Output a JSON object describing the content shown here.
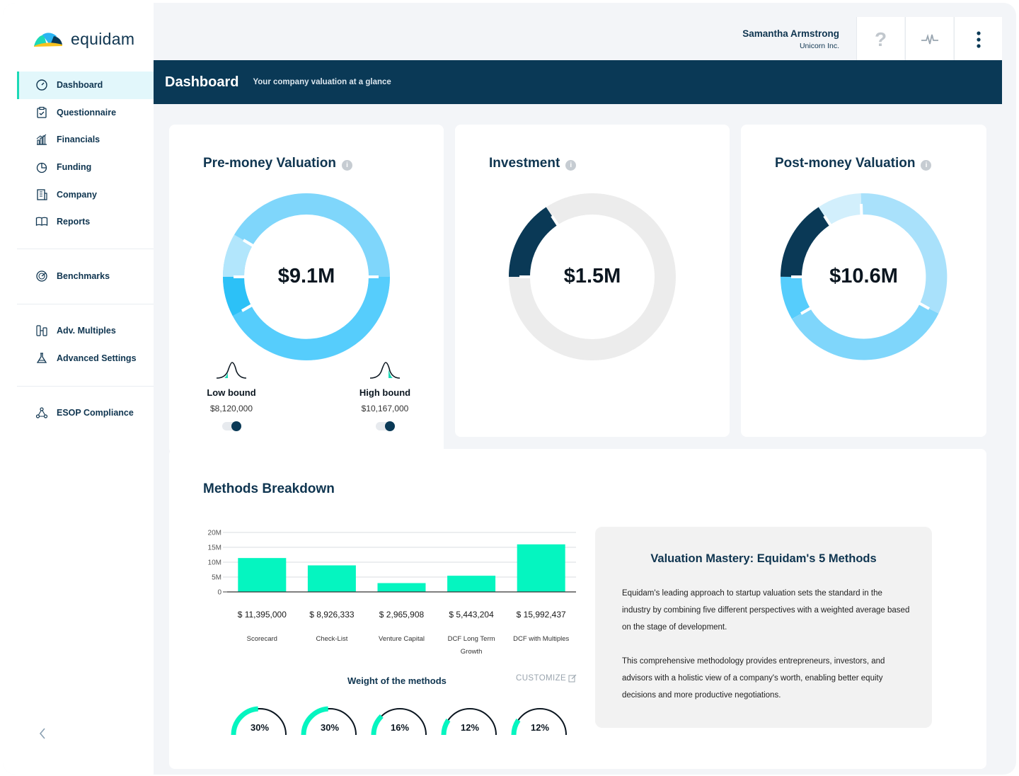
{
  "brand": {
    "name": "equidam"
  },
  "user": {
    "name": "Samantha Armstrong",
    "company": "Unicorn Inc."
  },
  "header": {
    "help_label": "?"
  },
  "nav": {
    "items": [
      {
        "label": "Dashboard",
        "icon": "gauge-icon"
      },
      {
        "label": "Questionnaire",
        "icon": "clipboard-icon"
      },
      {
        "label": "Financials",
        "icon": "chart-icon"
      },
      {
        "label": "Funding",
        "icon": "pie-icon"
      },
      {
        "label": "Company",
        "icon": "building-icon"
      },
      {
        "label": "Reports",
        "icon": "book-icon"
      }
    ],
    "benchmarks": "Benchmarks",
    "adv_multiples": "Adv. Multiples",
    "advanced_settings": "Advanced Settings",
    "esop": "ESOP Compliance"
  },
  "topbar": {
    "title": "Dashboard",
    "subtitle": "Your company valuation at a glance"
  },
  "premoney": {
    "title": "Pre-money Valuation",
    "value": "$9.1M",
    "low_label": "Low bound",
    "low_value": "$8,120,000",
    "high_label": "High bound",
    "high_value": "$10,167,000"
  },
  "investment": {
    "title": "Investment",
    "value": "$1.5M"
  },
  "postmoney": {
    "title": "Post-money Valuation",
    "value": "$10.6M"
  },
  "methods": {
    "title": "Methods Breakdown",
    "weights_title": "Weight of the methods",
    "customize_label": "CUSTOMIZE",
    "weights": [
      {
        "label": "30%",
        "value": 0.3
      },
      {
        "label": "30%",
        "value": 0.3
      },
      {
        "label": "16%",
        "value": 0.16
      },
      {
        "label": "12%",
        "value": 0.12
      },
      {
        "label": "12%",
        "value": 0.12
      }
    ]
  },
  "info": {
    "title": "Valuation Mastery: Equidam's 5 Methods",
    "p1": "Equidam's leading approach to startup valuation sets the standard in the industry by combining five different perspectives with a weighted average based on the stage of development.",
    "p2": "This comprehensive methodology provides entrepreneurs, investors, and advisors with a holistic view of a company's worth, enabling better equity decisions and more productive negotiations."
  },
  "colors": {
    "navy": "#0a3956",
    "teal": "#05f5c0",
    "light_blue": "#7fd6fb",
    "sky": "#56cdfc",
    "pale": "#b2e6fc",
    "gray_ring": "#ececec"
  },
  "chart_data": {
    "type": "bar",
    "categories": [
      "Scorecard",
      "Check-List",
      "Venture Capital",
      "DCF Long Term Growth",
      "DCF with Multiples"
    ],
    "values": [
      11395000,
      8926333,
      2965908,
      5443204,
      15992437
    ],
    "value_labels": [
      "$ 11,395,000",
      "$ 8,926,333",
      "$ 2,965,908",
      "$ 5,443,204",
      "$ 15,992,437"
    ],
    "yticks": [
      "0",
      "5M",
      "10M",
      "15M",
      "20M"
    ],
    "ylim": [
      0,
      20000000
    ],
    "grid": true
  }
}
